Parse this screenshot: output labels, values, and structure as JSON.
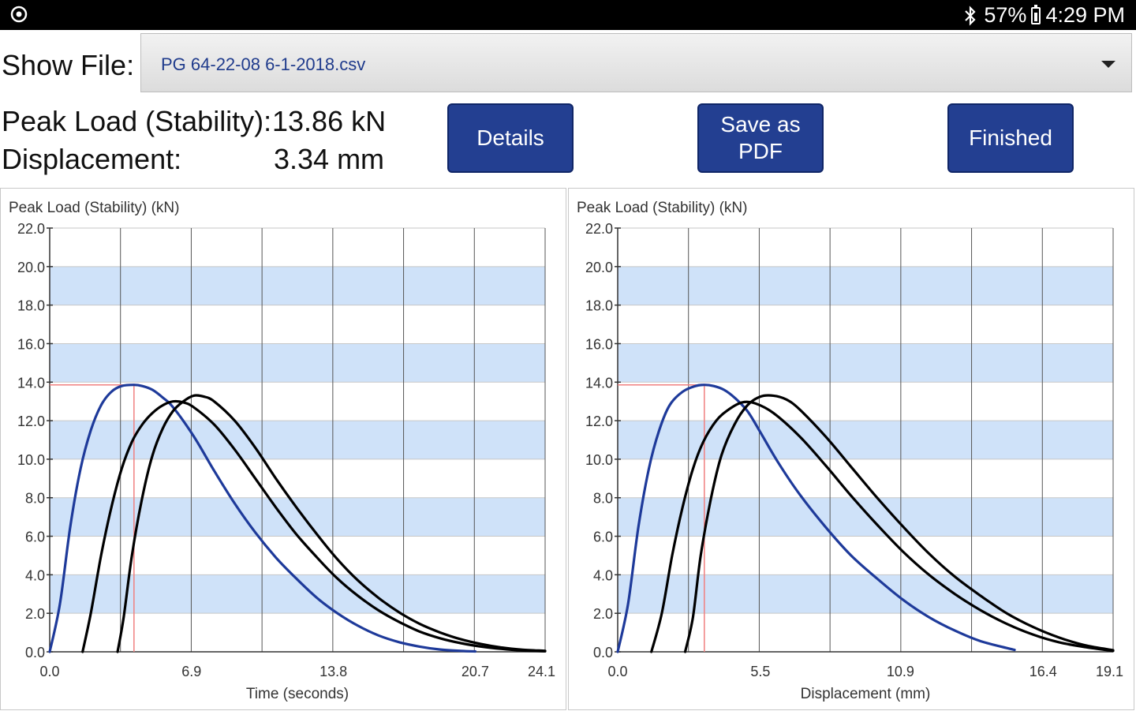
{
  "status_bar": {
    "battery": "57%",
    "time": "4:29 PM",
    "icons": [
      "app-icon",
      "bluetooth-icon",
      "battery-icon"
    ]
  },
  "file": {
    "label": "Show File:",
    "selected": "PG 64-22-08 6-1-2018.csv",
    "caret_icon": "chevron-down-icon"
  },
  "summary": {
    "peak_label": "Peak Load (Stability):",
    "peak_value": "13.86 kN",
    "disp_label": "Displacement:",
    "disp_value": "3.34 mm"
  },
  "buttons": {
    "details": "Details",
    "save_pdf": "Save as\nPDF",
    "finished": "Finished"
  },
  "colors": {
    "button_bg": "#233f91",
    "band": "#cfe2f9",
    "blue_curve": "#1e3a9a",
    "black_curve": "#000000",
    "marker": "#f08080"
  },
  "chart_data": [
    {
      "type": "line",
      "ylabel": "Peak Load (Stability) (kN)",
      "xlabel": "Time (seconds)",
      "ylim": [
        0,
        22
      ],
      "y_ticks": [
        "0.0",
        "2.0",
        "4.0",
        "6.0",
        "8.0",
        "10.0",
        "12.0",
        "14.0",
        "16.0",
        "18.0",
        "20.0",
        "22.0"
      ],
      "xlim": [
        0,
        24.1
      ],
      "x_ticks": [
        "0.0",
        "6.9",
        "13.8",
        "20.7",
        "24.1"
      ],
      "grid": true,
      "peak_marker": {
        "x": 4.1,
        "y": 13.86
      },
      "series": [
        {
          "color": "blue",
          "x": [
            0,
            0.5,
            1,
            1.5,
            2,
            2.5,
            3,
            3.5,
            4.1,
            4.5,
            5,
            5.5,
            6,
            7,
            8,
            9,
            10,
            11,
            12,
            13,
            14,
            15,
            16,
            17,
            18,
            19,
            20,
            20.7
          ],
          "y": [
            0,
            2.5,
            6.5,
            9.5,
            11.5,
            12.8,
            13.5,
            13.8,
            13.86,
            13.8,
            13.6,
            13.2,
            12.7,
            11.2,
            9.4,
            7.7,
            6.2,
            4.9,
            3.8,
            2.8,
            2.0,
            1.35,
            0.85,
            0.5,
            0.27,
            0.12,
            0.05,
            0.02
          ]
        },
        {
          "color": "black",
          "x": [
            1.6,
            2,
            2.5,
            3,
            3.5,
            4,
            4.5,
            5,
            5.5,
            6,
            6.5,
            7,
            8,
            9,
            10,
            11,
            12,
            13,
            14,
            15,
            16,
            17,
            18,
            19,
            20,
            21,
            22,
            23,
            24.1
          ],
          "y": [
            0,
            2.0,
            5.0,
            7.5,
            9.5,
            10.9,
            11.8,
            12.4,
            12.8,
            13.0,
            12.95,
            12.7,
            11.8,
            10.5,
            9.0,
            7.5,
            6.1,
            4.9,
            3.8,
            2.9,
            2.15,
            1.55,
            1.05,
            0.7,
            0.45,
            0.27,
            0.15,
            0.07,
            0.03
          ]
        },
        {
          "color": "black",
          "x": [
            3.3,
            3.6,
            4,
            4.5,
            5,
            5.5,
            6,
            6.5,
            7,
            7.5,
            8,
            9,
            10,
            11,
            12,
            13,
            14,
            15,
            16,
            17,
            18,
            19,
            20,
            21,
            22,
            23,
            24.1
          ],
          "y": [
            0,
            1.8,
            5.0,
            8.0,
            10.2,
            11.6,
            12.5,
            13.0,
            13.3,
            13.25,
            13.0,
            12.0,
            10.6,
            9.0,
            7.5,
            6.1,
            4.8,
            3.7,
            2.8,
            2.05,
            1.45,
            1.0,
            0.65,
            0.4,
            0.22,
            0.11,
            0.05
          ]
        }
      ]
    },
    {
      "type": "line",
      "ylabel": "Peak Load (Stability) (kN)",
      "xlabel": "Displacement (mm)",
      "ylim": [
        0,
        22
      ],
      "y_ticks": [
        "0.0",
        "2.0",
        "4.0",
        "6.0",
        "8.0",
        "10.0",
        "12.0",
        "14.0",
        "16.0",
        "18.0",
        "20.0",
        "22.0"
      ],
      "xlim": [
        0,
        19.1
      ],
      "x_ticks": [
        "0.0",
        "5.5",
        "10.9",
        "16.4",
        "19.1"
      ],
      "grid": true,
      "peak_marker": {
        "x": 3.34,
        "y": 13.86
      },
      "series": [
        {
          "color": "blue",
          "x": [
            0,
            0.4,
            0.8,
            1.2,
            1.6,
            2.0,
            2.5,
            3.0,
            3.34,
            3.7,
            4.1,
            4.5,
            5,
            5.5,
            6.2,
            7,
            8,
            9,
            10,
            11,
            12,
            13,
            14,
            15.3
          ],
          "y": [
            0,
            2.5,
            6.5,
            9.5,
            11.5,
            12.8,
            13.5,
            13.8,
            13.86,
            13.8,
            13.6,
            13.2,
            12.5,
            11.4,
            9.8,
            8.2,
            6.5,
            5.0,
            3.8,
            2.7,
            1.8,
            1.1,
            0.55,
            0.1
          ]
        },
        {
          "color": "black",
          "x": [
            1.3,
            1.7,
            2.1,
            2.5,
            2.9,
            3.3,
            3.8,
            4.3,
            4.8,
            5.3,
            6,
            7,
            8,
            9,
            10,
            11,
            12,
            13,
            14,
            15,
            16,
            17,
            18,
            19.1
          ],
          "y": [
            0,
            2.0,
            5.0,
            7.5,
            9.5,
            10.9,
            12.0,
            12.6,
            12.95,
            12.9,
            12.4,
            11.2,
            9.7,
            8.1,
            6.6,
            5.2,
            4.0,
            3.0,
            2.15,
            1.45,
            0.9,
            0.5,
            0.25,
            0.05
          ]
        },
        {
          "color": "black",
          "x": [
            2.6,
            2.9,
            3.2,
            3.6,
            4.0,
            4.5,
            5.0,
            5.5,
            6.0,
            6.5,
            7,
            8,
            9,
            10,
            11,
            12,
            13,
            14,
            15,
            16,
            17,
            18,
            19.1
          ],
          "y": [
            0,
            1.8,
            5.0,
            8.0,
            10.2,
            11.8,
            12.8,
            13.25,
            13.3,
            13.1,
            12.6,
            11.2,
            9.6,
            8.0,
            6.5,
            5.1,
            3.9,
            2.9,
            2.0,
            1.3,
            0.75,
            0.35,
            0.08
          ]
        }
      ]
    }
  ]
}
